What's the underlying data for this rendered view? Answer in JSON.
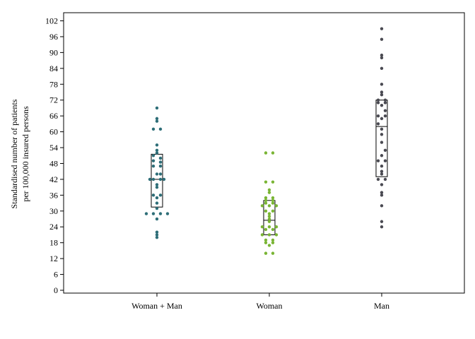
{
  "chart_data": {
    "type": "scatter",
    "subtype": "strip plot with box (IQR and median)",
    "title": "",
    "ylabel": [
      "Standardised number of patients",
      "per 100,000 insured persons"
    ],
    "xlabel": "",
    "ylim": [
      0,
      104
    ],
    "yticks": [
      0,
      6,
      12,
      18,
      24,
      30,
      36,
      42,
      48,
      54,
      60,
      66,
      72,
      78,
      84,
      90,
      96,
      102
    ],
    "grid": false,
    "legend": "none",
    "categories": [
      "Woman + Man",
      "Woman",
      "Man"
    ],
    "series": [
      {
        "category": "Woman + Man",
        "color": "#2e6e78",
        "box": {
          "q1": 31.5,
          "median": 42,
          "q3": 51.5
        },
        "points": [
          {
            "offset": 0,
            "y": 69
          },
          {
            "offset": 0,
            "y": 65
          },
          {
            "offset": 0,
            "y": 64
          },
          {
            "offset": -1,
            "y": 61
          },
          {
            "offset": 1,
            "y": 61
          },
          {
            "offset": 0,
            "y": 55
          },
          {
            "offset": 0,
            "y": 53
          },
          {
            "offset": 0,
            "y": 52
          },
          {
            "offset": -1,
            "y": 51
          },
          {
            "offset": 1,
            "y": 50
          },
          {
            "offset": -1,
            "y": 49
          },
          {
            "offset": 1,
            "y": 48.5
          },
          {
            "offset": -1,
            "y": 47
          },
          {
            "offset": 1,
            "y": 47
          },
          {
            "offset": 0,
            "y": 44
          },
          {
            "offset": 1,
            "y": 44
          },
          {
            "offset": -2,
            "y": 42
          },
          {
            "offset": -1,
            "y": 42
          },
          {
            "offset": 1,
            "y": 42
          },
          {
            "offset": 2,
            "y": 42
          },
          {
            "offset": 0,
            "y": 40
          },
          {
            "offset": 0,
            "y": 39
          },
          {
            "offset": -1,
            "y": 36
          },
          {
            "offset": 1,
            "y": 36
          },
          {
            "offset": 0,
            "y": 35
          },
          {
            "offset": 0,
            "y": 33
          },
          {
            "offset": 0,
            "y": 31
          },
          {
            "offset": -3,
            "y": 29
          },
          {
            "offset": -1,
            "y": 29
          },
          {
            "offset": 1,
            "y": 29
          },
          {
            "offset": 3,
            "y": 29
          },
          {
            "offset": 0,
            "y": 27
          },
          {
            "offset": 0,
            "y": 22
          },
          {
            "offset": 0,
            "y": 21
          },
          {
            "offset": 0,
            "y": 20
          }
        ]
      },
      {
        "category": "Woman",
        "color": "#7ab535",
        "box": {
          "q1": 21,
          "median": 26.5,
          "q3": 34
        },
        "points": [
          {
            "offset": -1,
            "y": 52
          },
          {
            "offset": 1,
            "y": 52
          },
          {
            "offset": -1,
            "y": 41
          },
          {
            "offset": 1,
            "y": 41
          },
          {
            "offset": 0,
            "y": 38
          },
          {
            "offset": 0,
            "y": 37
          },
          {
            "offset": -1,
            "y": 35
          },
          {
            "offset": 1,
            "y": 35
          },
          {
            "offset": -1,
            "y": 34
          },
          {
            "offset": 1,
            "y": 34
          },
          {
            "offset": -1,
            "y": 33
          },
          {
            "offset": 1,
            "y": 33
          },
          {
            "offset": -2,
            "y": 32
          },
          {
            "offset": 0,
            "y": 32
          },
          {
            "offset": 2,
            "y": 32
          },
          {
            "offset": -1,
            "y": 30
          },
          {
            "offset": 1,
            "y": 30
          },
          {
            "offset": 0,
            "y": 29
          },
          {
            "offset": 0,
            "y": 28
          },
          {
            "offset": 0,
            "y": 27
          },
          {
            "offset": 0,
            "y": 26
          },
          {
            "offset": -2,
            "y": 24
          },
          {
            "offset": 0,
            "y": 24
          },
          {
            "offset": 2,
            "y": 24
          },
          {
            "offset": -1,
            "y": 23
          },
          {
            "offset": 1,
            "y": 23
          },
          {
            "offset": -2,
            "y": 21
          },
          {
            "offset": 0,
            "y": 21
          },
          {
            "offset": 2,
            "y": 21
          },
          {
            "offset": -1,
            "y": 19
          },
          {
            "offset": 1,
            "y": 19
          },
          {
            "offset": -1,
            "y": 18
          },
          {
            "offset": 1,
            "y": 18
          },
          {
            "offset": 0,
            "y": 17
          },
          {
            "offset": -1,
            "y": 14
          },
          {
            "offset": 1,
            "y": 14
          }
        ]
      },
      {
        "category": "Man",
        "color": "#4a4a52",
        "box": {
          "q1": 43,
          "median": 62,
          "q3": 72
        },
        "points": [
          {
            "offset": 0,
            "y": 99
          },
          {
            "offset": 0,
            "y": 95
          },
          {
            "offset": 0,
            "y": 89
          },
          {
            "offset": 0,
            "y": 88
          },
          {
            "offset": 0,
            "y": 84
          },
          {
            "offset": 0,
            "y": 78
          },
          {
            "offset": 0,
            "y": 75
          },
          {
            "offset": 0,
            "y": 74
          },
          {
            "offset": -1,
            "y": 72
          },
          {
            "offset": 1,
            "y": 72
          },
          {
            "offset": -1,
            "y": 71
          },
          {
            "offset": 1,
            "y": 71
          },
          {
            "offset": 0,
            "y": 70
          },
          {
            "offset": 1,
            "y": 68
          },
          {
            "offset": -1,
            "y": 66
          },
          {
            "offset": 1,
            "y": 66
          },
          {
            "offset": 0,
            "y": 65
          },
          {
            "offset": -1,
            "y": 63
          },
          {
            "offset": 0,
            "y": 61
          },
          {
            "offset": 0,
            "y": 59
          },
          {
            "offset": 0,
            "y": 56
          },
          {
            "offset": 1,
            "y": 53
          },
          {
            "offset": 0,
            "y": 51
          },
          {
            "offset": -1,
            "y": 49
          },
          {
            "offset": 1,
            "y": 49
          },
          {
            "offset": 0,
            "y": 47
          },
          {
            "offset": 0,
            "y": 45
          },
          {
            "offset": 0,
            "y": 44
          },
          {
            "offset": -1,
            "y": 42
          },
          {
            "offset": 1,
            "y": 42
          },
          {
            "offset": 0,
            "y": 40
          },
          {
            "offset": 0,
            "y": 37
          },
          {
            "offset": 0,
            "y": 36
          },
          {
            "offset": 0,
            "y": 32
          },
          {
            "offset": 0,
            "y": 26
          },
          {
            "offset": 0,
            "y": 24
          }
        ]
      }
    ]
  }
}
